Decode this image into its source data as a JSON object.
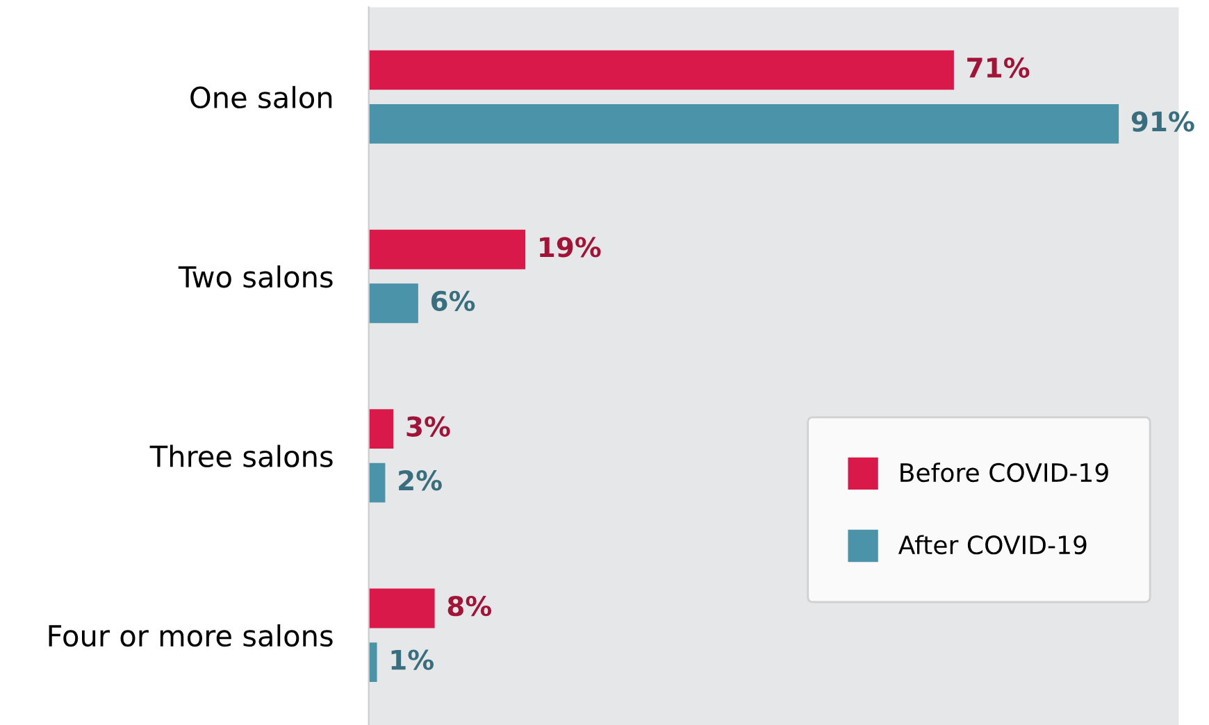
{
  "chart_data": {
    "type": "bar",
    "orientation": "horizontal",
    "categories": [
      "One salon",
      "Two salons",
      "Three salons",
      "Four or more salons"
    ],
    "series": [
      {
        "name": "Before COVID-19",
        "color": "#d8194a",
        "values": [
          71,
          19,
          3,
          8
        ],
        "value_labels": [
          "71%",
          "19%",
          "3%",
          "8%"
        ]
      },
      {
        "name": "After COVID-19",
        "color": "#4b93a8",
        "values": [
          91,
          6,
          2,
          1
        ],
        "value_labels": [
          "91%",
          "6%",
          "2%",
          "1%"
        ]
      }
    ],
    "legend": "right",
    "grid": false,
    "tick_labels": "y"
  }
}
